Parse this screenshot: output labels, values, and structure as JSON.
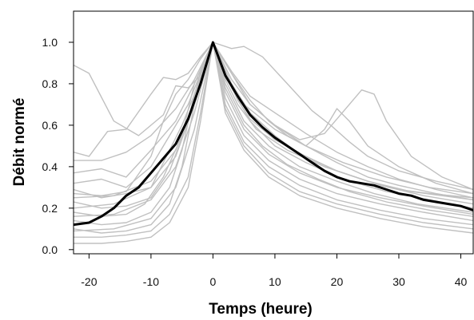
{
  "chart_data": {
    "type": "line",
    "xlabel": "Temps (heure)",
    "ylabel": "Débit normé",
    "xlim": [
      -22.5,
      42
    ],
    "ylim": [
      -0.02,
      1.15
    ],
    "xticks": [
      "-20",
      "-10",
      "0",
      "10",
      "20",
      "30",
      "40"
    ],
    "yticks": [
      "0.0",
      "0.2",
      "0.4",
      "0.6",
      "0.8",
      "1.0"
    ],
    "grid": false,
    "series": [
      {
        "role": "individual",
        "color": "#c0c0c0",
        "x": [
          -22.5,
          -20,
          -16,
          -12,
          -8,
          -6,
          -4,
          -2,
          0,
          2,
          4,
          6,
          10,
          15,
          20,
          25,
          30,
          35,
          42
        ],
        "y": [
          0.89,
          0.85,
          0.62,
          0.55,
          0.65,
          0.79,
          0.78,
          0.84,
          1.0,
          0.85,
          0.72,
          0.63,
          0.53,
          0.45,
          0.38,
          0.33,
          0.29,
          0.27,
          0.25
        ]
      },
      {
        "role": "individual",
        "color": "#c0c0c0",
        "x": [
          -22.5,
          -20,
          -17,
          -14,
          -10,
          -8,
          -6,
          -4,
          -2,
          0,
          2,
          4,
          7,
          12,
          18,
          25,
          32,
          42
        ],
        "y": [
          0.47,
          0.45,
          0.57,
          0.58,
          0.75,
          0.83,
          0.82,
          0.85,
          0.93,
          1.0,
          0.82,
          0.7,
          0.58,
          0.48,
          0.4,
          0.33,
          0.28,
          0.24
        ]
      },
      {
        "role": "individual",
        "color": "#c0c0c0",
        "x": [
          -22.5,
          -18,
          -14,
          -10,
          -6,
          -3,
          0,
          2,
          5,
          10,
          15,
          20,
          25,
          30,
          36,
          42
        ],
        "y": [
          0.37,
          0.39,
          0.35,
          0.48,
          0.62,
          0.8,
          1.0,
          0.83,
          0.7,
          0.58,
          0.5,
          0.42,
          0.35,
          0.31,
          0.27,
          0.24
        ]
      },
      {
        "role": "individual",
        "color": "#c0c0c0",
        "x": [
          -22.5,
          -18,
          -14,
          -10,
          -7,
          -4,
          -2,
          0,
          3,
          6,
          10,
          14,
          20,
          27,
          34,
          42
        ],
        "y": [
          0.32,
          0.34,
          0.3,
          0.4,
          0.55,
          0.7,
          0.85,
          1.0,
          0.8,
          0.66,
          0.55,
          0.46,
          0.38,
          0.31,
          0.26,
          0.22
        ]
      },
      {
        "role": "individual",
        "color": "#c0c0c0",
        "x": [
          -22.5,
          -18,
          -14,
          -10,
          -8,
          -5,
          -2,
          0,
          3,
          6,
          10,
          15,
          21,
          28,
          35,
          42
        ],
        "y": [
          0.29,
          0.25,
          0.27,
          0.3,
          0.42,
          0.6,
          0.82,
          1.0,
          0.78,
          0.62,
          0.5,
          0.42,
          0.34,
          0.28,
          0.24,
          0.2
        ]
      },
      {
        "role": "individual",
        "color": "#c0c0c0",
        "x": [
          -22.5,
          -18,
          -14,
          -10,
          -7,
          -4,
          -2,
          0,
          2,
          5,
          9,
          14,
          20,
          26,
          33,
          42
        ],
        "y": [
          0.23,
          0.2,
          0.21,
          0.25,
          0.38,
          0.62,
          0.86,
          1.0,
          0.8,
          0.62,
          0.5,
          0.4,
          0.33,
          0.27,
          0.22,
          0.18
        ]
      },
      {
        "role": "individual",
        "color": "#c0c0c0",
        "x": [
          -22.5,
          -18,
          -14,
          -11,
          -8,
          -5,
          -3,
          0,
          2,
          5,
          9,
          14,
          20,
          27,
          34,
          42
        ],
        "y": [
          0.18,
          0.16,
          0.17,
          0.22,
          0.35,
          0.55,
          0.8,
          1.0,
          0.76,
          0.58,
          0.46,
          0.37,
          0.3,
          0.25,
          0.21,
          0.17
        ]
      },
      {
        "role": "individual",
        "color": "#c0c0c0",
        "x": [
          -22.5,
          -18,
          -14,
          -10,
          -7,
          -5,
          -3,
          0,
          2,
          5,
          9,
          14,
          20,
          27,
          34,
          42
        ],
        "y": [
          0.14,
          0.12,
          0.13,
          0.18,
          0.3,
          0.48,
          0.75,
          1.0,
          0.73,
          0.55,
          0.43,
          0.34,
          0.27,
          0.22,
          0.18,
          0.14
        ]
      },
      {
        "role": "individual",
        "color": "#c0c0c0",
        "x": [
          -22.5,
          -18,
          -14,
          -10,
          -7,
          -5,
          -3,
          0,
          2,
          5,
          9,
          14,
          20,
          27,
          34,
          42
        ],
        "y": [
          0.1,
          0.08,
          0.09,
          0.12,
          0.22,
          0.4,
          0.7,
          1.0,
          0.7,
          0.52,
          0.4,
          0.31,
          0.24,
          0.19,
          0.15,
          0.12
        ]
      },
      {
        "role": "individual",
        "color": "#c0c0c0",
        "x": [
          -22.5,
          -18,
          -14,
          -10,
          -7,
          -4,
          -2,
          0,
          2,
          5,
          9,
          14,
          20,
          27,
          34,
          42
        ],
        "y": [
          0.06,
          0.06,
          0.07,
          0.09,
          0.17,
          0.35,
          0.66,
          1.0,
          0.68,
          0.5,
          0.37,
          0.28,
          0.22,
          0.17,
          0.13,
          0.1
        ]
      },
      {
        "role": "individual",
        "color": "#c0c0c0",
        "x": [
          -22.5,
          -18,
          -14,
          -10,
          -7,
          -4,
          -2,
          0,
          2,
          5,
          9,
          14,
          20,
          27,
          34,
          42
        ],
        "y": [
          0.03,
          0.03,
          0.04,
          0.06,
          0.13,
          0.3,
          0.62,
          1.0,
          0.66,
          0.48,
          0.35,
          0.26,
          0.2,
          0.15,
          0.11,
          0.08
        ]
      },
      {
        "role": "individual",
        "color": "#c0c0c0",
        "x": [
          -22.5,
          -18,
          -14,
          -10,
          -8,
          -6,
          -4,
          -2,
          0,
          2,
          4,
          6,
          10,
          15,
          21,
          28,
          35,
          42
        ],
        "y": [
          0.27,
          0.26,
          0.28,
          0.45,
          0.62,
          0.75,
          0.82,
          0.92,
          1.0,
          0.9,
          0.8,
          0.7,
          0.6,
          0.5,
          0.42,
          0.35,
          0.3,
          0.27
        ]
      },
      {
        "role": "individual",
        "color": "#c0c0c0",
        "x": [
          -22.5,
          -18,
          -14,
          -10,
          -6,
          -3,
          0,
          3,
          5,
          8,
          12,
          16,
          19,
          22,
          25,
          30,
          36,
          42
        ],
        "y": [
          0.43,
          0.43,
          0.47,
          0.55,
          0.68,
          0.82,
          1.0,
          0.97,
          0.98,
          0.93,
          0.8,
          0.67,
          0.6,
          0.52,
          0.45,
          0.38,
          0.33,
          0.29
        ]
      },
      {
        "role": "individual",
        "color": "#c0c0c0",
        "x": [
          -22.5,
          -16,
          -10,
          -6,
          -3,
          0,
          3,
          6,
          9,
          12,
          15,
          18,
          20,
          22,
          25,
          30,
          36,
          42
        ],
        "y": [
          0.2,
          0.22,
          0.3,
          0.45,
          0.7,
          1.0,
          0.85,
          0.72,
          0.62,
          0.55,
          0.5,
          0.58,
          0.68,
          0.62,
          0.5,
          0.4,
          0.32,
          0.27
        ]
      },
      {
        "role": "individual",
        "color": "#c0c0c0",
        "x": [
          -22.5,
          -16,
          -10,
          -6,
          -3,
          0,
          3,
          6,
          10,
          14,
          18,
          22,
          24,
          26,
          28,
          32,
          37,
          42
        ],
        "y": [
          0.25,
          0.26,
          0.33,
          0.48,
          0.72,
          1.0,
          0.82,
          0.7,
          0.6,
          0.53,
          0.56,
          0.7,
          0.77,
          0.75,
          0.62,
          0.45,
          0.35,
          0.29
        ]
      },
      {
        "role": "individual",
        "color": "#c0c0c0",
        "x": [
          -22.5,
          -16,
          -10,
          -6,
          -3,
          0,
          3,
          6,
          10,
          15,
          20,
          25,
          30,
          36,
          42
        ],
        "y": [
          0.16,
          0.17,
          0.24,
          0.4,
          0.66,
          1.0,
          0.86,
          0.74,
          0.66,
          0.56,
          0.47,
          0.4,
          0.34,
          0.29,
          0.25
        ]
      },
      {
        "role": "individual",
        "color": "#c0c0c0",
        "x": [
          -22.5,
          -16,
          -10,
          -6,
          -3,
          0,
          2,
          5,
          8,
          12,
          17,
          22,
          28,
          35,
          42
        ],
        "y": [
          0.09,
          0.1,
          0.15,
          0.3,
          0.58,
          1.0,
          0.78,
          0.6,
          0.5,
          0.41,
          0.34,
          0.28,
          0.23,
          0.19,
          0.16
        ]
      },
      {
        "role": "mean",
        "color": "#000000",
        "x": [
          -22.5,
          -20,
          -18,
          -16,
          -14,
          -12,
          -10,
          -8,
          -6,
          -4,
          -2,
          0,
          2,
          4,
          6,
          8,
          10,
          12,
          14,
          16,
          18,
          20,
          22,
          24,
          26,
          28,
          30,
          32,
          34,
          36,
          38,
          40,
          42
        ],
        "y": [
          0.12,
          0.13,
          0.16,
          0.2,
          0.26,
          0.3,
          0.37,
          0.44,
          0.51,
          0.63,
          0.8,
          1.0,
          0.84,
          0.74,
          0.65,
          0.59,
          0.54,
          0.5,
          0.46,
          0.42,
          0.38,
          0.35,
          0.33,
          0.32,
          0.31,
          0.29,
          0.27,
          0.26,
          0.24,
          0.23,
          0.22,
          0.21,
          0.19
        ]
      }
    ]
  }
}
